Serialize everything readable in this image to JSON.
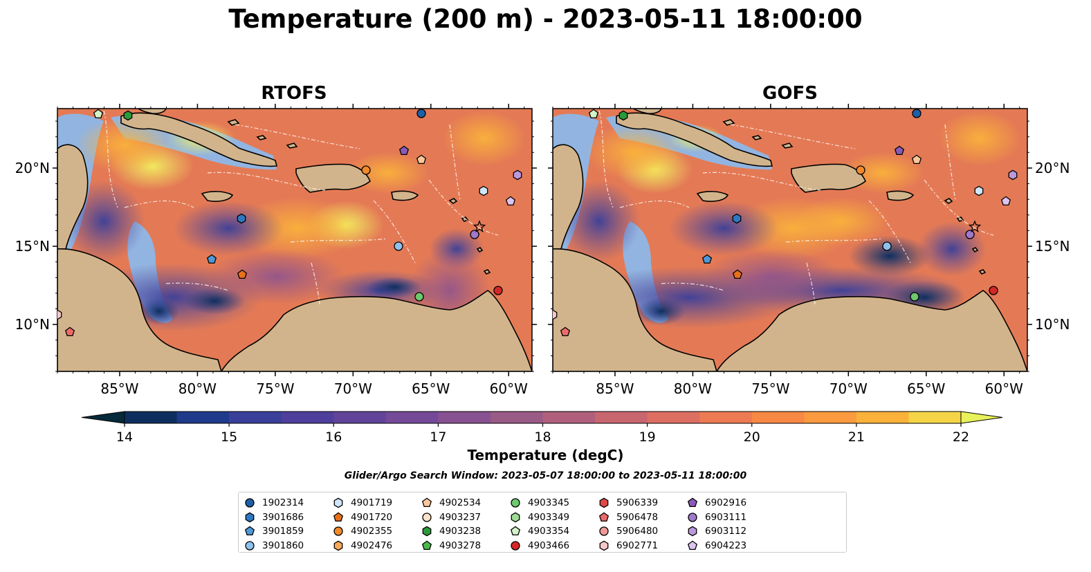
{
  "title": "Temperature (200 m) - 2023-05-11 18:00:00",
  "panels": [
    {
      "title": "RTOFS"
    },
    {
      "title": "GOFS"
    }
  ],
  "map_extent": {
    "lon": [
      -89.0,
      -58.5
    ],
    "lat": [
      7.0,
      23.8
    ]
  },
  "lon_ticks": [
    {
      "value": -85,
      "label": "85°W"
    },
    {
      "value": -80,
      "label": "80°W"
    },
    {
      "value": -75,
      "label": "75°W"
    },
    {
      "value": -70,
      "label": "70°W"
    },
    {
      "value": -65,
      "label": "65°W"
    },
    {
      "value": -60,
      "label": "60°W"
    }
  ],
  "lat_ticks": [
    {
      "value": 20,
      "label": "20°N"
    },
    {
      "value": 15,
      "label": "15°N"
    },
    {
      "value": 10,
      "label": "10°N"
    }
  ],
  "colorbar": {
    "title": "Temperature (degC)",
    "min": 14,
    "max": 22,
    "step": 0.5,
    "ticks": [
      "14",
      "15",
      "16",
      "17",
      "18",
      "19",
      "20",
      "21",
      "22"
    ],
    "colors": [
      "#052a3a",
      "#0e2f5e",
      "#1f3a8a",
      "#3a3f9a",
      "#4e3f9c",
      "#61449a",
      "#744a98",
      "#885191",
      "#9a5a86",
      "#b0607c",
      "#c8666f",
      "#dc6e62",
      "#ec7a52",
      "#f78845",
      "#fb9a3e",
      "#fbb23a",
      "#f5d547"
    ],
    "over_color": "#e8f25a"
  },
  "search_window": "Glider/Argo Search Window: 2023-05-07 18:00:00 to 2023-05-11 18:00:00",
  "legend": [
    {
      "id": "1902314",
      "marker": "circle",
      "color": "#1f5fa8"
    },
    {
      "id": "3901686",
      "marker": "hexagon",
      "color": "#2f78c0"
    },
    {
      "id": "3901859",
      "marker": "pentagon",
      "color": "#4f98d8"
    },
    {
      "id": "3901860",
      "marker": "circle",
      "color": "#8ec2ee"
    },
    {
      "id": "4901719",
      "marker": "hexagon",
      "color": "#cfe6fb"
    },
    {
      "id": "4901720",
      "marker": "pentagon",
      "color": "#e8701a"
    },
    {
      "id": "4902355",
      "marker": "circle",
      "color": "#f28a2a"
    },
    {
      "id": "4902476",
      "marker": "hexagon",
      "color": "#f8a85a"
    },
    {
      "id": "4902534",
      "marker": "pentagon",
      "color": "#fbc79a"
    },
    {
      "id": "4903237",
      "marker": "circle",
      "color": "#fde2c8"
    },
    {
      "id": "4903238",
      "marker": "hexagon",
      "color": "#2a9a3a"
    },
    {
      "id": "4903278",
      "marker": "pentagon",
      "color": "#4aba4a"
    },
    {
      "id": "4903345",
      "marker": "circle",
      "color": "#6ec86e"
    },
    {
      "id": "4903349",
      "marker": "hexagon",
      "color": "#a0dc96"
    },
    {
      "id": "4903354",
      "marker": "pentagon",
      "color": "#d2f2c8"
    },
    {
      "id": "4903466",
      "marker": "circle",
      "color": "#d42828"
    },
    {
      "id": "5906339",
      "marker": "hexagon",
      "color": "#e04848"
    },
    {
      "id": "5906478",
      "marker": "pentagon",
      "color": "#ec6a6a"
    },
    {
      "id": "5906480",
      "marker": "circle",
      "color": "#f09898"
    },
    {
      "id": "6902771",
      "marker": "hexagon",
      "color": "#f8c8c8"
    },
    {
      "id": "6902916",
      "marker": "pentagon",
      "color": "#8a5ab8"
    },
    {
      "id": "6903111",
      "marker": "circle",
      "color": "#a078cc"
    },
    {
      "id": "6903112",
      "marker": "hexagon",
      "color": "#bc98dc"
    },
    {
      "id": "6904223",
      "marker": "pentagon",
      "color": "#dcc4f0"
    }
  ],
  "colors": {
    "land": "#d2b48c",
    "shelf": "#92b4e0",
    "deep": "#06223a",
    "boundary_line": "#ffffff"
  }
}
